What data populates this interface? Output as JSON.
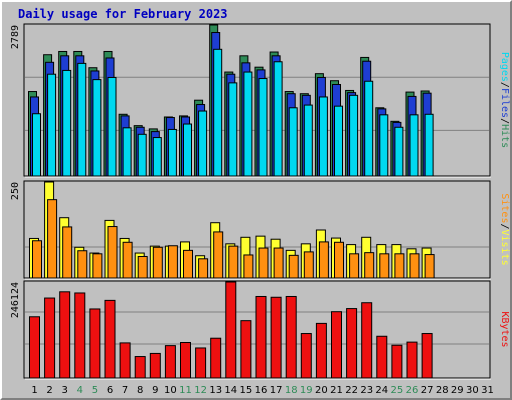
{
  "title": "Daily usage for February 2023",
  "colors": {
    "hits": "#2e8b57",
    "files": "#1e3ed2",
    "pages": "#00d8f0",
    "visits": "#ffff30",
    "sites": "#ff9010",
    "kbytes": "#ee1010",
    "weekday_label": "#000000",
    "weekend_label": "#2e8b57",
    "background": "#c0c0c0"
  },
  "chart_data": [
    {
      "type": "bar",
      "panel": "hits-files-pages",
      "ymax_label": "2789",
      "ymax": 2789,
      "legend_labels": [
        "Pages",
        "Files",
        "Hits"
      ],
      "legend_separator": "/",
      "categories": [
        "1",
        "2",
        "3",
        "4",
        "5",
        "6",
        "7",
        "8",
        "9",
        "10",
        "11",
        "12",
        "13",
        "14",
        "15",
        "16",
        "17",
        "18",
        "19",
        "20",
        "21",
        "22",
        "23",
        "24",
        "25",
        "26",
        "27",
        "28",
        "29",
        "30",
        "31"
      ],
      "weekend_days": [
        "4",
        "5",
        "11",
        "12",
        "18",
        "19",
        "25",
        "26"
      ],
      "series": [
        {
          "name": "Hits",
          "values": [
            1560,
            2240,
            2300,
            2300,
            2000,
            2300,
            1140,
            930,
            870,
            1090,
            1110,
            1400,
            2789,
            1920,
            2220,
            2010,
            2290,
            1560,
            1520,
            1890,
            1760,
            1580,
            2190,
            1260,
            1010,
            1550,
            1570,
            0,
            0,
            0,
            0
          ]
        },
        {
          "name": "Files",
          "values": [
            1460,
            2100,
            2220,
            2220,
            1940,
            2180,
            1110,
            900,
            820,
            1080,
            1090,
            1320,
            2650,
            1880,
            2090,
            1960,
            2220,
            1520,
            1490,
            1820,
            1690,
            1540,
            2120,
            1240,
            990,
            1470,
            1530,
            0,
            0,
            0,
            0
          ]
        },
        {
          "name": "Pages",
          "values": [
            1150,
            1880,
            1950,
            2080,
            1780,
            1820,
            890,
            770,
            710,
            860,
            960,
            1200,
            2340,
            1720,
            1920,
            1800,
            2110,
            1260,
            1310,
            1460,
            1290,
            1490,
            1750,
            1130,
            900,
            1130,
            1140,
            0,
            0,
            0,
            0
          ]
        }
      ]
    },
    {
      "type": "bar",
      "panel": "visits-sites",
      "ymax_label": "250",
      "ymax": 250,
      "legend_labels": [
        "Sites",
        "Visits"
      ],
      "legend_separator": "/",
      "categories": [
        "1",
        "2",
        "3",
        "4",
        "5",
        "6",
        "7",
        "8",
        "9",
        "10",
        "11",
        "12",
        "13",
        "14",
        "15",
        "16",
        "17",
        "18",
        "19",
        "20",
        "21",
        "22",
        "23",
        "24",
        "25",
        "26",
        "27",
        "28",
        "29",
        "30",
        "31"
      ],
      "series": [
        {
          "name": "Visits",
          "values": [
            103,
            250,
            157,
            80,
            65,
            150,
            103,
            65,
            83,
            83,
            94,
            58,
            144,
            89,
            106,
            109,
            101,
            72,
            89,
            125,
            104,
            87,
            106,
            87,
            87,
            76,
            78,
            0,
            0,
            0,
            0
          ]
        },
        {
          "name": "Sites",
          "values": [
            97,
            204,
            133,
            71,
            63,
            134,
            93,
            56,
            80,
            84,
            72,
            50,
            120,
            83,
            60,
            78,
            78,
            59,
            68,
            94,
            93,
            63,
            66,
            63,
            63,
            63,
            61,
            0,
            0,
            0,
            0
          ]
        }
      ]
    },
    {
      "type": "bar",
      "panel": "kbytes",
      "ymax_label": "246124",
      "ymax": 246124,
      "legend_labels": [
        "KBytes"
      ],
      "categories": [
        "1",
        "2",
        "3",
        "4",
        "5",
        "6",
        "7",
        "8",
        "9",
        "10",
        "11",
        "12",
        "13",
        "14",
        "15",
        "16",
        "17",
        "18",
        "19",
        "20",
        "21",
        "22",
        "23",
        "24",
        "25",
        "26",
        "27",
        "28",
        "29",
        "30",
        "31"
      ],
      "series": [
        {
          "name": "KBytes",
          "values": [
            157000,
            205000,
            221000,
            218000,
            177000,
            199000,
            90000,
            55000,
            63000,
            83000,
            91000,
            77000,
            102000,
            246124,
            147000,
            209000,
            207000,
            209000,
            114000,
            140000,
            170000,
            178000,
            193000,
            107000,
            84000,
            92000,
            114000,
            0,
            0,
            0,
            0
          ]
        }
      ]
    }
  ]
}
